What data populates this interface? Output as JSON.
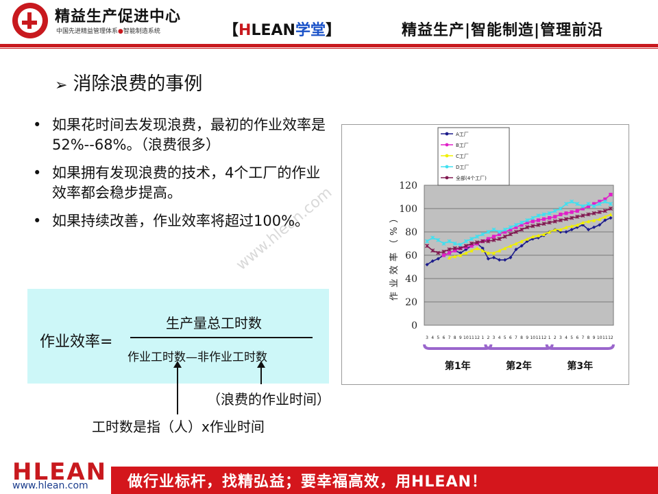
{
  "header": {
    "brand_title": "精益生产促进中心",
    "brand_sub_1": "中国先进精益管理体系",
    "brand_sub_2": "智能制造系统",
    "tag_open": "【",
    "tag_h": "H",
    "tag_lean": "LEAN",
    "tag_xt": "学堂",
    "tag_close": "】",
    "slogan": "精益生产|智能制造|管理前沿"
  },
  "section_title": "消除浪费的事例",
  "bullets": [
    "如果花时间去发现浪费，最初的作业效率是52%--68%。（浪费很多）",
    "如果拥有发现浪费的技术，4个工厂的作业效率都会稳步提高。",
    "如果持续改善，作业效率将超过100%。"
  ],
  "formula": {
    "label": "作业效率=",
    "numerator": "生产量总工时数",
    "denominator": "作业工时数—非作业工时数",
    "note_waste": "（浪费的作业时间）",
    "note_manhour": "工时数是指（人）x作业时间"
  },
  "watermark": "www.hlean.com",
  "colors": {
    "accent": "#c8191e",
    "formula_bg": "#cdf7f8",
    "plot_bg": "#c0c0c0",
    "year_bracket": "#9a66cc"
  },
  "footer": {
    "logo": "HLEAN",
    "url": "www.hlean.com",
    "slogan": "做行业标杆，找精弘益；要幸福高效，用HLEAN！"
  },
  "chart_data": {
    "type": "line",
    "title": "",
    "xlabel": "",
    "ylabel": "作业效率（%）",
    "ylim": [
      0,
      120
    ],
    "yticks": [
      0,
      20,
      40,
      60,
      80,
      100,
      120
    ],
    "x_tick_labels": [
      "3",
      "4",
      "5",
      "6",
      "7",
      "8",
      "9",
      "10",
      "11",
      "12",
      "1",
      "2",
      "3",
      "4",
      "5",
      "6",
      "7",
      "8",
      "9",
      "10",
      "11",
      "12",
      "1",
      "2",
      "3",
      "4",
      "5",
      "6",
      "7",
      "8",
      "9",
      "10",
      "11",
      "12"
    ],
    "year_groups": [
      {
        "label": "第1年",
        "start": 0,
        "end": 11
      },
      {
        "label": "第2年",
        "start": 11,
        "end": 22
      },
      {
        "label": "第3年",
        "start": 22,
        "end": 33
      }
    ],
    "legend_position": "top-left",
    "series": [
      {
        "name": "A工厂",
        "color": "#1c1c8c",
        "marker": "diamond",
        "values": [
          52,
          55,
          57,
          60,
          62,
          64,
          62,
          65,
          68,
          70,
          66,
          57,
          58,
          56,
          56,
          58,
          65,
          68,
          72,
          74,
          75,
          77,
          80,
          82,
          80,
          80,
          82,
          84,
          86,
          82,
          84,
          86,
          90,
          92
        ]
      },
      {
        "name": "B工厂",
        "color": "#e020c8",
        "marker": "square",
        "values": [
          null,
          null,
          null,
          60,
          62,
          64,
          66,
          67,
          68,
          70,
          72,
          74,
          76,
          78,
          80,
          82,
          84,
          86,
          88,
          89,
          90,
          91,
          92,
          93,
          95,
          96,
          97,
          98,
          100,
          102,
          104,
          106,
          108,
          112
        ]
      },
      {
        "name": "C工厂",
        "color": "#f0f000",
        "marker": "triangle",
        "values": [
          null,
          null,
          null,
          null,
          58,
          59,
          60,
          62,
          64,
          66,
          64,
          62,
          62,
          64,
          66,
          68,
          70,
          72,
          74,
          76,
          77,
          78,
          80,
          82,
          82,
          84,
          85,
          86,
          88,
          89,
          90,
          91,
          93,
          95
        ]
      },
      {
        "name": "D工厂",
        "color": "#40e0f0",
        "marker": "x",
        "values": [
          72,
          75,
          73,
          70,
          72,
          70,
          69,
          72,
          74,
          76,
          78,
          80,
          82,
          80,
          82,
          84,
          86,
          88,
          90,
          92,
          94,
          95,
          96,
          98,
          100,
          104,
          106,
          104,
          102,
          104,
          102,
          104,
          106,
          104
        ]
      },
      {
        "name": "全部(4个工厂)",
        "color": "#801850",
        "marker": "star",
        "values": [
          68,
          64,
          62,
          63,
          65,
          66,
          66,
          68,
          70,
          71,
          72,
          72,
          73,
          74,
          76,
          78,
          80,
          82,
          84,
          85,
          86,
          87,
          88,
          89,
          90,
          91,
          92,
          93,
          94,
          95,
          96,
          97,
          98,
          100
        ]
      }
    ]
  }
}
